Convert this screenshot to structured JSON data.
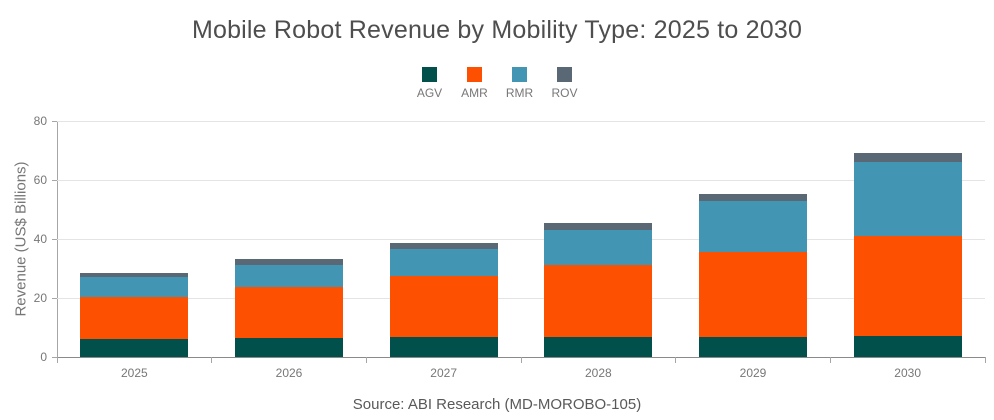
{
  "chart_data": {
    "type": "bar",
    "stacked": true,
    "title": "Mobile Robot Revenue by Mobility Type: 2025 to 2030",
    "ylabel": "Revenue (US$ Billions)",
    "xlabel": "",
    "source_note": "Source: ABI Research (MD-MOROBO-105)",
    "categories": [
      "2025",
      "2026",
      "2027",
      "2028",
      "2029",
      "2030"
    ],
    "series": [
      {
        "name": "AGV",
        "color": "#01504b",
        "values": [
          6.2,
          6.6,
          6.8,
          6.9,
          6.9,
          7.0
        ]
      },
      {
        "name": "AMR",
        "color": "#fd5000",
        "values": [
          14.2,
          17.1,
          20.8,
          24.2,
          28.7,
          33.9
        ]
      },
      {
        "name": "RMR",
        "color": "#4296b4",
        "values": [
          6.8,
          7.6,
          9.1,
          12.0,
          17.2,
          25.3
        ]
      },
      {
        "name": "ROV",
        "color": "#5a6775",
        "values": [
          1.4,
          2.0,
          2.1,
          2.5,
          2.5,
          3.0
        ]
      }
    ],
    "totals": [
      28.6,
      33.3,
      38.8,
      45.6,
      55.3,
      69.2
    ],
    "ylim": [
      0,
      80
    ],
    "yticks": [
      0,
      20,
      40,
      60,
      80
    ],
    "grid": true,
    "legend_position": "top",
    "colors": {
      "title_text": "#4e4e4e",
      "axis_text": "#777777",
      "gridline": "#e4e4e4",
      "axis_line": "#8a8a8a",
      "background": "#ffffff"
    }
  }
}
